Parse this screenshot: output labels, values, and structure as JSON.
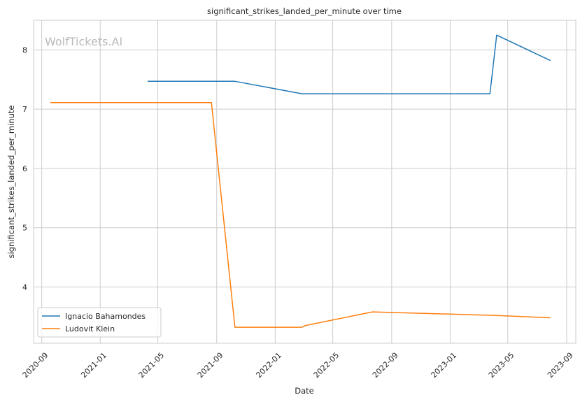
{
  "chart_data": {
    "type": "line",
    "title": "significant_strikes_landed_per_minute over time",
    "xlabel": "Date",
    "ylabel": "significant_strikes_landed_per_minute",
    "watermark": "WolfTickets.AI",
    "x_ticks": [
      "2020-09",
      "2021-01",
      "2021-05",
      "2021-09",
      "2022-01",
      "2022-05",
      "2022-09",
      "2023-01",
      "2023-05",
      "2023-09"
    ],
    "y_ticks": [
      4,
      5,
      6,
      7,
      8
    ],
    "xlim": [
      "2020-08-15",
      "2023-09-20"
    ],
    "ylim": [
      3.05,
      8.5
    ],
    "grid": true,
    "legend_position": "lower-left",
    "series": [
      {
        "name": "Ignacio Bahamondes",
        "color": "#1f77b4",
        "points": [
          {
            "x": "2021-04-10",
            "y": 7.47
          },
          {
            "x": "2021-10-09",
            "y": 7.47
          },
          {
            "x": "2022-02-26",
            "y": 7.26
          },
          {
            "x": "2023-03-25",
            "y": 7.26
          },
          {
            "x": "2023-04-08",
            "y": 8.25
          },
          {
            "x": "2023-07-29",
            "y": 7.82
          }
        ]
      },
      {
        "name": "Ludovit Klein",
        "color": "#ff7f0e",
        "points": [
          {
            "x": "2020-09-19",
            "y": 7.11
          },
          {
            "x": "2021-08-21",
            "y": 7.11
          },
          {
            "x": "2021-10-09",
            "y": 3.32
          },
          {
            "x": "2022-02-26",
            "y": 3.32
          },
          {
            "x": "2022-03-05",
            "y": 3.35
          },
          {
            "x": "2022-07-23",
            "y": 3.58
          },
          {
            "x": "2023-04-08",
            "y": 3.52
          },
          {
            "x": "2023-07-29",
            "y": 3.48
          }
        ]
      }
    ]
  }
}
